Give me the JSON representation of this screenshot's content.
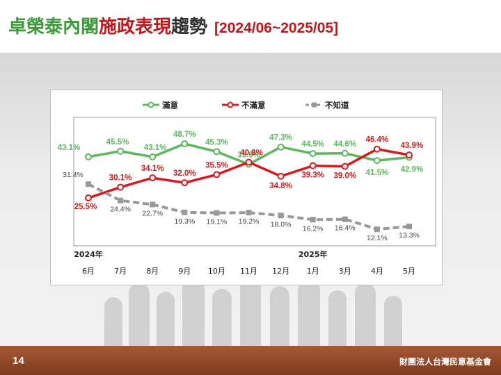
{
  "title": {
    "part1": "卓榮泰內閣",
    "part2": "施政表現",
    "part3": "趨勢",
    "range": "[2024/06~2025/05]"
  },
  "colors": {
    "title_green": "#3d9a3b",
    "title_red": "#c0171b",
    "satisfied": "#5cb85c",
    "dissatisfied": "#d7191c",
    "unknown": "#999999",
    "footer": "#8b4423"
  },
  "chart_data": {
    "type": "line",
    "categories": [
      "6月",
      "7月",
      "8月",
      "9月",
      "10月",
      "11月",
      "12月",
      "1月",
      "3月",
      "4月",
      "5月"
    ],
    "year_labels": [
      {
        "category_index": 0,
        "label": "2024年"
      },
      {
        "category_index": 7,
        "label": "2025年"
      }
    ],
    "series": [
      {
        "name": "滿意",
        "color": "#5cb85c",
        "dashed": false,
        "values": [
          43.1,
          45.5,
          43.1,
          48.7,
          45.3,
          39.9,
          47.3,
          44.5,
          44.6,
          41.5,
          42.9
        ],
        "labels": [
          "43.1%",
          "45.5%",
          "43.1%",
          "48.7%",
          "45.3%",
          "39.9%",
          "47.3%",
          "44.5%",
          "44.6%",
          "41.5%",
          "42.9%"
        ]
      },
      {
        "name": "不滿意",
        "color": "#d7191c",
        "dashed": false,
        "values": [
          25.5,
          30.1,
          34.1,
          32.0,
          35.5,
          40.8,
          34.8,
          39.3,
          39.0,
          46.4,
          43.9
        ],
        "labels": [
          "25.5%",
          "30.1%",
          "34.1%",
          "32.0%",
          "35.5%",
          "40.8%",
          "34.8%",
          "39.3%",
          "39.0%",
          "46.4%",
          "43.9%"
        ]
      },
      {
        "name": "不知道",
        "color": "#999999",
        "dashed": true,
        "values": [
          31.4,
          24.4,
          22.7,
          19.3,
          19.1,
          19.2,
          18.0,
          16.2,
          16.4,
          12.1,
          13.3
        ],
        "labels": [
          "31.4%",
          "24.4%",
          "22.7%",
          "19.3%",
          "19.1%",
          "19.2%",
          "18.0%",
          "16.2%",
          "16.4%",
          "12.1%",
          "13.3%"
        ]
      }
    ],
    "ylim": [
      5,
      60
    ],
    "grid": false,
    "legend": "top-center"
  },
  "footer": {
    "page_number": "14",
    "org": "財團法人台灣民意基金會"
  }
}
